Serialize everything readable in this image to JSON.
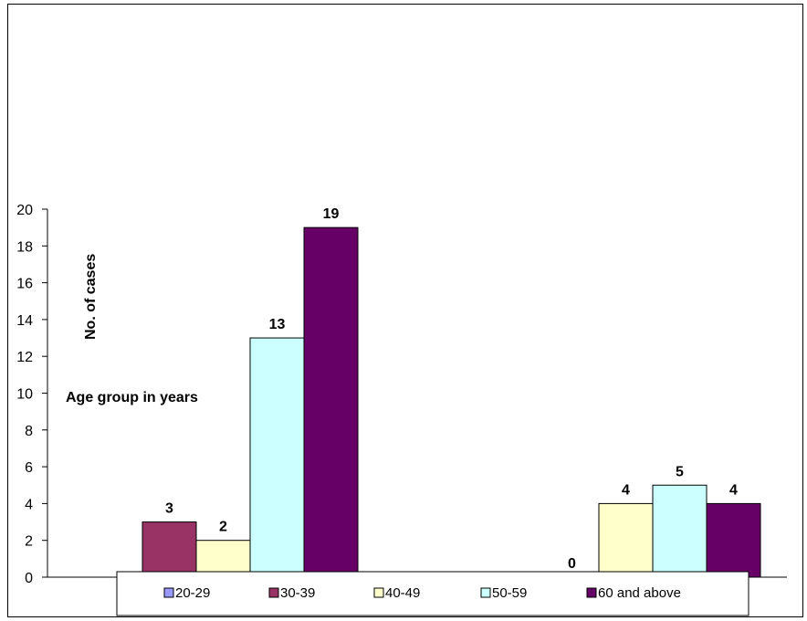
{
  "chart_data": {
    "type": "bar",
    "categories": [
      "",
      ""
    ],
    "series": [
      {
        "name": "20-29",
        "values": [
          null,
          null
        ],
        "color": "#9999ff"
      },
      {
        "name": "30-39",
        "values": [
          3,
          0
        ],
        "color": "#993366"
      },
      {
        "name": "40-49",
        "values": [
          2,
          4
        ],
        "color": "#ffffcc"
      },
      {
        "name": "50-59",
        "values": [
          13,
          5
        ],
        "color": "#ccffff"
      },
      {
        "name": "60 and above",
        "values": [
          19,
          4
        ],
        "color": "#660066"
      }
    ],
    "ylabel": "No. of cases",
    "xlabel": "Age group in years",
    "ylim": [
      0,
      20
    ],
    "yticks": [
      0,
      2,
      4,
      6,
      8,
      10,
      12,
      14,
      16,
      18,
      20
    ],
    "legend_position": "bottom",
    "grid": false
  }
}
